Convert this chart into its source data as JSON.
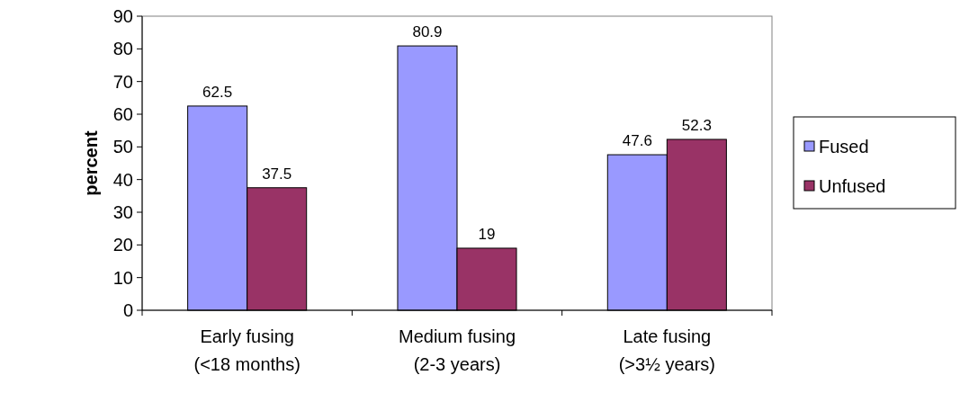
{
  "chart_data": {
    "type": "bar",
    "ylabel": "percent",
    "categories": [
      "Early fusing (<18 months)",
      "Medium fusing (2-3 years)",
      "Late fusing (>3½ years)"
    ],
    "series": [
      {
        "name": "Fused",
        "color": "#9999ff",
        "values": [
          62.5,
          80.9,
          47.6
        ]
      },
      {
        "name": "Unfused",
        "color": "#993366",
        "values": [
          37.5,
          19,
          52.3
        ]
      }
    ],
    "ylim": [
      0,
      90
    ],
    "yticks": [
      0,
      10,
      20,
      30,
      40,
      50,
      60,
      70,
      80,
      90
    ],
    "data_labels": true,
    "grid": false,
    "legend": "right"
  }
}
